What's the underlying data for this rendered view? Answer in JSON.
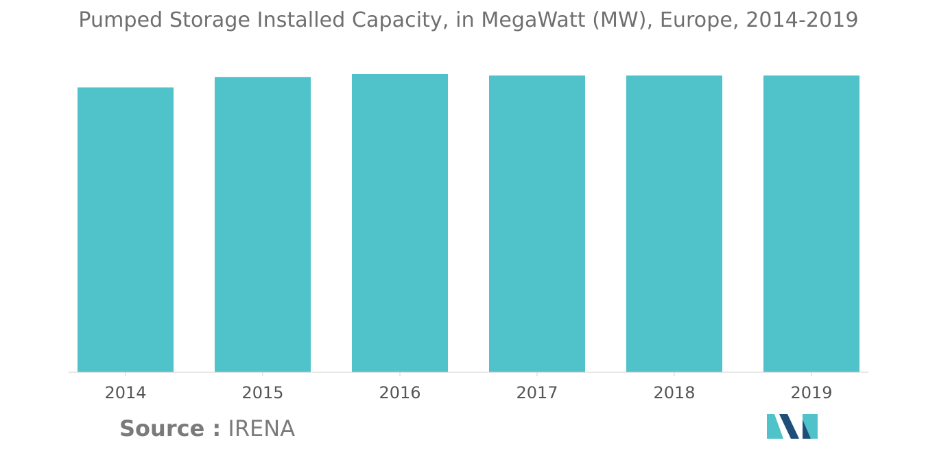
{
  "chart_data": {
    "type": "bar",
    "title": "Pumped Storage Installed Capacity, in MegaWatt (MW), Europe, 2014-2019",
    "xlabel": "",
    "ylabel": "",
    "categories": [
      "2014",
      "2015",
      "2016",
      "2017",
      "2018",
      "2019"
    ],
    "values": [
      96,
      99.5,
      100.5,
      100,
      100,
      100
    ],
    "ylim": [
      0,
      100.5
    ],
    "grid": false,
    "legend": "none",
    "bar_color": "#50c2c9"
  },
  "source": {
    "label": "Source :",
    "value": "IRENA"
  },
  "logo": {
    "icon": "mordor-intelligence-logo-icon",
    "colors": [
      "#1f4e79",
      "#50c2c9"
    ]
  }
}
